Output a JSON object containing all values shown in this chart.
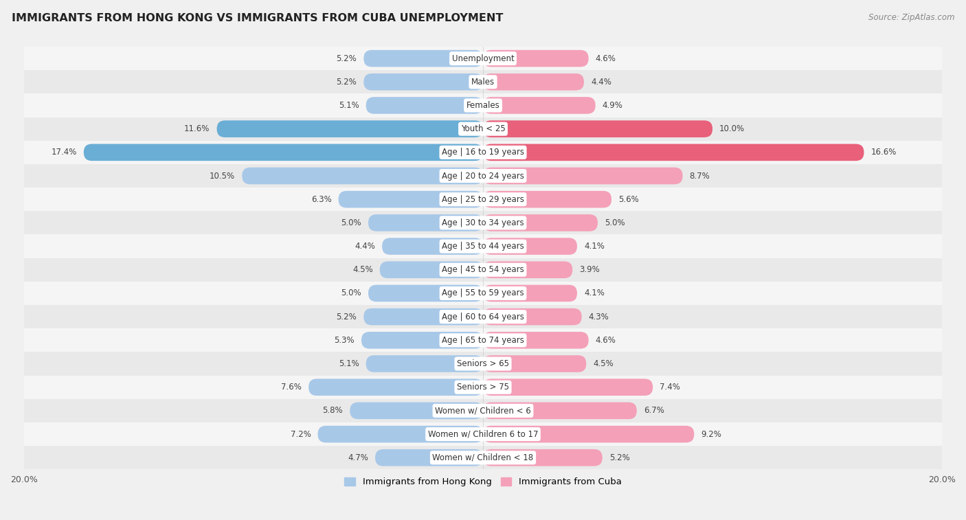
{
  "title": "IMMIGRANTS FROM HONG KONG VS IMMIGRANTS FROM CUBA UNEMPLOYMENT",
  "source": "Source: ZipAtlas.com",
  "categories": [
    "Unemployment",
    "Males",
    "Females",
    "Youth < 25",
    "Age | 16 to 19 years",
    "Age | 20 to 24 years",
    "Age | 25 to 29 years",
    "Age | 30 to 34 years",
    "Age | 35 to 44 years",
    "Age | 45 to 54 years",
    "Age | 55 to 59 years",
    "Age | 60 to 64 years",
    "Age | 65 to 74 years",
    "Seniors > 65",
    "Seniors > 75",
    "Women w/ Children < 6",
    "Women w/ Children 6 to 17",
    "Women w/ Children < 18"
  ],
  "hong_kong_values": [
    5.2,
    5.2,
    5.1,
    11.6,
    17.4,
    10.5,
    6.3,
    5.0,
    4.4,
    4.5,
    5.0,
    5.2,
    5.3,
    5.1,
    7.6,
    5.8,
    7.2,
    4.7
  ],
  "cuba_values": [
    4.6,
    4.4,
    4.9,
    10.0,
    16.6,
    8.7,
    5.6,
    5.0,
    4.1,
    3.9,
    4.1,
    4.3,
    4.6,
    4.5,
    7.4,
    6.7,
    9.2,
    5.2
  ],
  "hong_kong_color_normal": "#a8c8e8",
  "hong_kong_color_highlight": "#6aaed6",
  "cuba_color_normal": "#f4a0b8",
  "cuba_color_highlight": "#e8607a",
  "highlight_rows": [
    "Youth < 25",
    "Age | 16 to 19 years"
  ],
  "row_colors": [
    "#f0f0f0",
    "#e8e8e8"
  ],
  "background_color": "#f0f0f0",
  "xlim": 20.0,
  "legend_hk": "Immigrants from Hong Kong",
  "legend_cuba": "Immigrants from Cuba"
}
